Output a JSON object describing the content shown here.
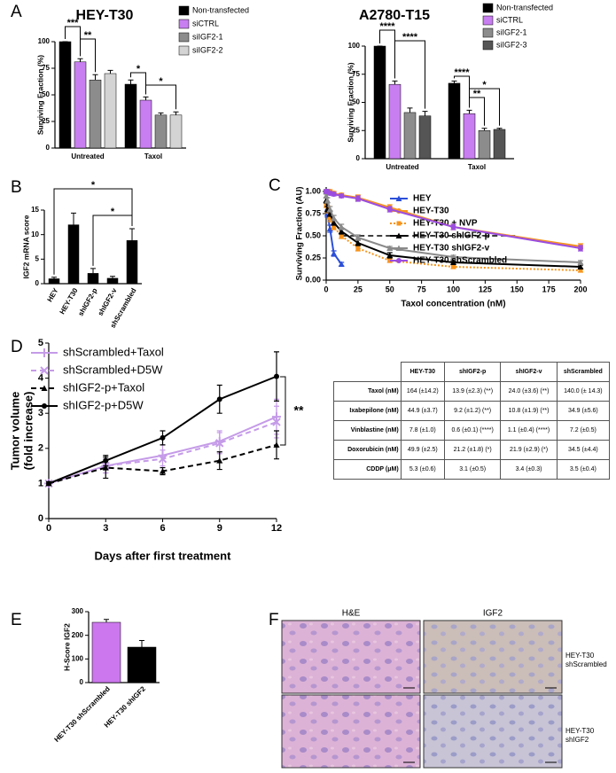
{
  "panel_labels": [
    "A",
    "B",
    "C",
    "D",
    "E",
    "F"
  ],
  "chart_data": [
    {
      "type": "bar",
      "title": "HEY-T30",
      "ylabel": "Surviving Fraction (%)",
      "categories": [
        "Untreated",
        "Taxol"
      ],
      "series": [
        {
          "name": "Non-transfected",
          "color": "#000000",
          "values": [
            100,
            60
          ],
          "errors": [
            0,
            4
          ]
        },
        {
          "name": "siCTRL",
          "color": "#c87ef0",
          "values": [
            81,
            45
          ],
          "errors": [
            3,
            3
          ]
        },
        {
          "name": "siIGF2-1",
          "color": "#8c8c8c",
          "values": [
            64,
            31
          ],
          "errors": [
            5,
            2
          ]
        },
        {
          "name": "siIGF2-2",
          "color": "#d4d4d4",
          "values": [
            70,
            31
          ],
          "errors": [
            3,
            3
          ]
        }
      ],
      "ylim": [
        0,
        100
      ],
      "yticks": [
        0,
        25,
        50,
        75,
        100
      ],
      "annotations": [
        "***",
        "**",
        "*",
        "*"
      ]
    },
    {
      "type": "bar",
      "title": "A2780-T15",
      "ylabel": "Surviving Fraction (%)",
      "categories": [
        "Untreated",
        "Taxol"
      ],
      "series": [
        {
          "name": "Non-transfected",
          "color": "#000000",
          "values": [
            100,
            67
          ],
          "errors": [
            0,
            2
          ]
        },
        {
          "name": "siCTRL",
          "color": "#c87ef0",
          "values": [
            66,
            40
          ],
          "errors": [
            3,
            3
          ]
        },
        {
          "name": "siIGF2-1",
          "color": "#8c8c8c",
          "values": [
            41,
            25
          ],
          "errors": [
            4,
            2
          ]
        },
        {
          "name": "siIGF2-3",
          "color": "#555555",
          "values": [
            38,
            26
          ],
          "errors": [
            4,
            1
          ]
        }
      ],
      "ylim": [
        0,
        100
      ],
      "yticks": [
        0,
        25,
        50,
        75,
        100
      ],
      "annotations": [
        "****",
        "****",
        "****",
        "**",
        "*"
      ]
    },
    {
      "type": "bar",
      "ylabel": "IGF2 mRNA score",
      "categories": [
        "HEY",
        "HEY-T30",
        "shIGF2-p",
        "shIGF2-v",
        "shScrambled"
      ],
      "values": [
        1,
        12,
        2.1,
        1.1,
        8.8
      ],
      "errors": [
        0.3,
        2.4,
        1,
        0.4,
        2.4
      ],
      "color": "#000000",
      "ylim": [
        0,
        15
      ],
      "yticks": [
        0,
        5,
        10,
        15
      ],
      "annotations": [
        "*",
        "*"
      ]
    },
    {
      "type": "line",
      "ylabel": "Surviving Fraction (AU)",
      "xlabel": "Taxol concentration (nM)",
      "x": [
        0,
        1,
        3,
        6,
        12,
        25,
        50,
        100,
        200
      ],
      "series": [
        {
          "name": "HEY",
          "color": "#2b4fd8",
          "dash": "solid",
          "marker": "triangle",
          "values": [
            1,
            0.75,
            0.58,
            0.3,
            0.18,
            null,
            null,
            null,
            null
          ],
          "errors": [
            0.02,
            0.04,
            0.04,
            0.03,
            0.02,
            null,
            null,
            null,
            null
          ]
        },
        {
          "name": "HEY-T30",
          "color": "#f7941d",
          "dash": "solid",
          "marker": "circle",
          "values": [
            1,
            1,
            1,
            0.98,
            0.96,
            0.93,
            0.82,
            0.6,
            0.38
          ],
          "errors": [
            0.02,
            0.02,
            0.02,
            0.02,
            0.02,
            0.03,
            0.03,
            0.03,
            0.03
          ]
        },
        {
          "name": "HEY-T30 + NVP",
          "color": "#f7941d",
          "dash": "dotted",
          "marker": "square",
          "values": [
            0.85,
            0.8,
            0.7,
            0.6,
            0.5,
            0.36,
            0.22,
            0.15,
            0.11
          ],
          "errors": [
            0.03,
            0.04,
            0.04,
            0.03,
            0.03,
            0.03,
            0.02,
            0.02,
            0.02
          ]
        },
        {
          "name": "HEY-T30 shIGF2-p",
          "color": "#000000",
          "dash": "solid",
          "marker": "triangle",
          "values": [
            0.9,
            0.8,
            0.75,
            0.65,
            0.55,
            0.42,
            0.28,
            0.2,
            0.15
          ],
          "errors": [
            0.03,
            0.03,
            0.03,
            0.03,
            0.03,
            0.03,
            0.03,
            0.02,
            0.02
          ]
        },
        {
          "name": "HEY-T30 shIGF2-v",
          "color": "#8a8a8a",
          "dash": "solid",
          "marker": "triangle",
          "values": [
            0.95,
            0.9,
            0.8,
            0.7,
            0.6,
            0.48,
            0.36,
            0.26,
            0.2
          ],
          "errors": [
            0.02,
            0.03,
            0.03,
            0.03,
            0.03,
            0.03,
            0.02,
            0.02,
            0.02
          ]
        },
        {
          "name": "HEY-T30 shScrambled",
          "color": "#9b4de0",
          "dash": "solid",
          "marker": "circle",
          "values": [
            1,
            1,
            0.98,
            0.97,
            0.95,
            0.92,
            0.8,
            0.6,
            0.36
          ],
          "errors": [
            0.02,
            0.02,
            0.02,
            0.02,
            0.02,
            0.03,
            0.03,
            0.03,
            0.03
          ]
        }
      ],
      "xlim": [
        0,
        200
      ],
      "xticks": [
        0,
        25,
        50,
        75,
        100,
        125,
        150,
        175,
        200
      ],
      "ylim": [
        0,
        1.05
      ],
      "yticks": [
        {
          "value": 0,
          "label": "0.00"
        },
        0.25,
        {
          "value": 0.5,
          "label": "0.50"
        },
        0.75,
        {
          "value": 1,
          "label": "1.00"
        }
      ],
      "reference_line": {
        "y": 0.5,
        "x": [
          12,
          150
        ]
      }
    },
    {
      "type": "line",
      "ylabel": [
        "Tumor volume",
        "(fold increase)"
      ],
      "xlabel": "Days after first treatment",
      "x": [
        0,
        3,
        6,
        9,
        12
      ],
      "series": [
        {
          "name": "shScrambled+Taxol",
          "color": "#c59be8",
          "dash": "solid",
          "marker": "plus",
          "values": [
            1,
            1.5,
            1.8,
            2.2,
            2.9
          ],
          "errors": [
            0.05,
            0.2,
            0.3,
            0.3,
            0.5
          ]
        },
        {
          "name": "shScrambled+D5W",
          "color": "#c59be8",
          "dash": "dashed",
          "marker": "x",
          "values": [
            1,
            1.5,
            1.7,
            2.15,
            2.75
          ],
          "errors": [
            0.05,
            0.2,
            0.25,
            0.3,
            0.45
          ]
        },
        {
          "name": "shIGF2-p+Taxol",
          "color": "#000000",
          "dash": "dashed",
          "marker": "triangle",
          "values": [
            1,
            1.45,
            1.35,
            1.65,
            2.1
          ],
          "errors": [
            0.05,
            0.3,
            0.1,
            0.25,
            0.4
          ]
        },
        {
          "name": "shIGF2-p+D5W",
          "color": "#000000",
          "dash": "solid",
          "marker": "circle",
          "values": [
            1,
            1.65,
            2.3,
            3.4,
            4.05
          ],
          "errors": [
            0.05,
            0.15,
            0.2,
            0.4,
            0.7
          ]
        }
      ],
      "xlim": [
        0,
        12
      ],
      "xticks": [
        0,
        3,
        6,
        9,
        12
      ],
      "ylim": [
        0,
        5
      ],
      "yticks": [
        0,
        1,
        2,
        3,
        4,
        5
      ],
      "annotations": [
        "**"
      ]
    },
    {
      "type": "bar",
      "ylabel": "H-Score IGF2",
      "categories": [
        "HEY-T30 shScrambled",
        "HEY-T30 shIGF2"
      ],
      "values": [
        255,
        150
      ],
      "errors": [
        12,
        28
      ],
      "colors": [
        "#cc77ee",
        "#000000"
      ],
      "ylim": [
        0,
        300
      ],
      "yticks": [
        0,
        100,
        200,
        300
      ]
    }
  ],
  "table": {
    "header": [
      "HEY-T30",
      "shIGF2-p",
      "shIGF2-v",
      "shScrambled"
    ],
    "rows": [
      [
        "Taxol (nM)",
        "164 (±14.2)",
        "13.9 (±2.3) (**)",
        "24.0 (±3.6) (**)",
        "140.0 (± 14.3)"
      ],
      [
        "Ixabepilone (nM)",
        "44.9 (±3.7)",
        "9.2 (±1.2) (**)",
        "10.8 (±1.9) (**)",
        "34.9 (±5.6)"
      ],
      [
        "Vinblastine (nM)",
        "7.8 (±1.0)",
        "0.6 (±0.1) (****)",
        "1.1 (±0.4) (****)",
        "7.2 (±0.5)"
      ],
      [
        "Doxorubicin (nM)",
        "49.9 (±2.5)",
        "21.2 (±1.8) (*)",
        "21.9 (±2.9) (*)",
        "34.5 (±4.4)"
      ],
      [
        "CDDP (μM)",
        "5.3 (±0.6)",
        "3.1 (±0.5)",
        "3.4 (±0.3)",
        "3.5 (±0.4)"
      ]
    ]
  },
  "images": {
    "columns": [
      "H&E",
      "IGF2"
    ],
    "rows": [
      "HEY-T30 shScrambled",
      "HEY-T30 shIGF2"
    ]
  }
}
